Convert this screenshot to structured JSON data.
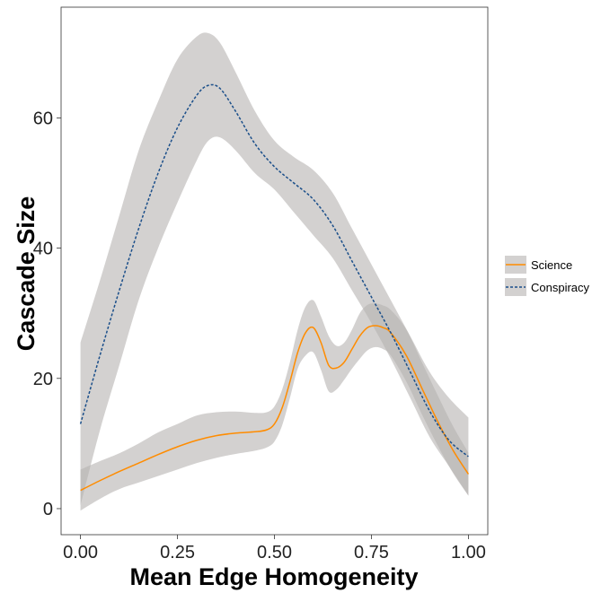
{
  "chart_data": {
    "type": "line",
    "xlabel": "Mean Edge Homogeneity",
    "ylabel": "Cascade Size",
    "xlim": [
      -0.05,
      1.05
    ],
    "ylim": [
      -4,
      77
    ],
    "x_ticks": [
      0.0,
      0.25,
      0.5,
      0.75,
      1.0
    ],
    "x_tick_labels": [
      "0.00",
      "0.25",
      "0.50",
      "0.75",
      "1.00"
    ],
    "y_ticks": [
      0,
      20,
      40,
      60
    ],
    "y_tick_labels": [
      "0",
      "20",
      "40",
      "60"
    ],
    "grid": false,
    "legend_position": "right",
    "series": [
      {
        "name": "Science",
        "color": "#FF8C00",
        "dash": "solid",
        "x": [
          0.0,
          0.05,
          0.1,
          0.15,
          0.2,
          0.25,
          0.3,
          0.35,
          0.4,
          0.45,
          0.48,
          0.5,
          0.52,
          0.54,
          0.56,
          0.58,
          0.6,
          0.62,
          0.64,
          0.66,
          0.68,
          0.7,
          0.72,
          0.74,
          0.76,
          0.78,
          0.8,
          0.84,
          0.88,
          0.92,
          0.96,
          1.0
        ],
        "y": [
          2.8,
          4.3,
          5.7,
          7.0,
          8.3,
          9.5,
          10.5,
          11.2,
          11.6,
          11.8,
          12.1,
          13.0,
          15.5,
          19.5,
          24.0,
          27.0,
          27.8,
          25.5,
          22.0,
          21.6,
          22.5,
          24.5,
          26.5,
          27.8,
          28.1,
          27.8,
          27.0,
          23.5,
          18.5,
          13.5,
          9.0,
          5.3
        ],
        "lower": [
          -0.3,
          1.5,
          3.0,
          4.0,
          5.0,
          6.0,
          7.0,
          7.8,
          8.4,
          8.9,
          9.4,
          10.3,
          12.8,
          17.0,
          21.5,
          23.5,
          24.0,
          21.3,
          18.0,
          18.3,
          19.8,
          21.5,
          23.0,
          24.3,
          24.8,
          24.5,
          23.5,
          19.5,
          14.5,
          9.8,
          5.5,
          2.0
        ],
        "upper": [
          6.0,
          7.3,
          8.5,
          10.0,
          11.7,
          13.0,
          14.3,
          14.8,
          14.9,
          14.7,
          14.8,
          15.7,
          18.3,
          22.5,
          27.5,
          31.0,
          32.0,
          29.5,
          26.5,
          25.0,
          25.5,
          27.5,
          30.0,
          31.3,
          31.5,
          31.2,
          30.5,
          27.5,
          22.5,
          17.5,
          12.7,
          8.6
        ]
      },
      {
        "name": "Conspiracy",
        "color": "#1B4F8A",
        "dash": "dotted",
        "x": [
          0.0,
          0.05,
          0.1,
          0.15,
          0.2,
          0.25,
          0.3,
          0.33,
          0.36,
          0.4,
          0.45,
          0.5,
          0.55,
          0.6,
          0.65,
          0.7,
          0.75,
          0.8,
          0.85,
          0.9,
          0.95,
          1.0
        ],
        "y": [
          13.0,
          23.5,
          33.5,
          43.0,
          51.5,
          58.5,
          63.5,
          65.0,
          64.5,
          61.0,
          56.0,
          52.5,
          50.0,
          47.5,
          43.5,
          38.0,
          32.5,
          27.0,
          21.0,
          15.0,
          10.5,
          8.0
        ],
        "lower": [
          0.5,
          12.0,
          22.0,
          32.0,
          40.0,
          47.0,
          53.5,
          56.5,
          57.0,
          55.0,
          51.5,
          49.0,
          45.5,
          42.0,
          38.5,
          33.5,
          28.5,
          23.0,
          17.0,
          11.0,
          6.5,
          2.0
        ],
        "upper": [
          25.5,
          35.0,
          45.0,
          55.0,
          62.5,
          69.0,
          72.5,
          73.0,
          71.5,
          67.0,
          61.0,
          56.5,
          54.0,
          52.0,
          48.5,
          43.0,
          37.5,
          32.0,
          26.5,
          21.0,
          17.0,
          14.0
        ]
      }
    ]
  }
}
